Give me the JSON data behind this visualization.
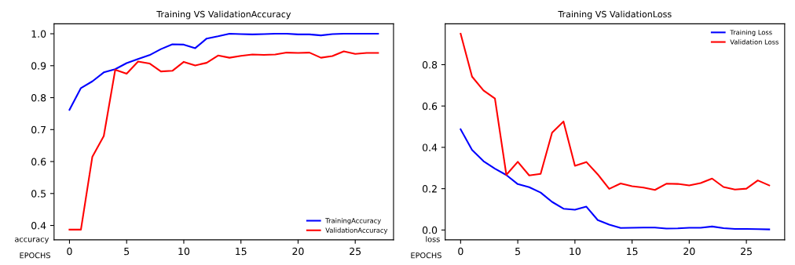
{
  "chart_data": [
    {
      "type": "line",
      "title": "Training VS ValidationAccuracy",
      "xlabel": "EPOCHS",
      "ylabel": "accuracy",
      "x": [
        0,
        1,
        2,
        3,
        4,
        5,
        6,
        7,
        8,
        9,
        10,
        11,
        12,
        13,
        14,
        15,
        16,
        17,
        18,
        19,
        20,
        21,
        22,
        23,
        24,
        25,
        26,
        27
      ],
      "series": [
        {
          "name": "TrainingAccuracy",
          "color": "#0000ff",
          "values": [
            0.762,
            0.83,
            0.851,
            0.879,
            0.889,
            0.908,
            0.921,
            0.933,
            0.952,
            0.967,
            0.966,
            0.955,
            0.985,
            0.992,
            1.0,
            0.999,
            0.998,
            0.999,
            1.0,
            1.0,
            0.998,
            0.998,
            0.995,
            0.999,
            1.0,
            1.0,
            1.0,
            1.0
          ]
        },
        {
          "name": "ValidationAccuracy",
          "color": "#ff0000",
          "values": [
            0.387,
            0.387,
            0.615,
            0.68,
            0.887,
            0.875,
            0.913,
            0.907,
            0.882,
            0.884,
            0.912,
            0.901,
            0.909,
            0.932,
            0.925,
            0.931,
            0.935,
            0.934,
            0.935,
            0.941,
            0.94,
            0.941,
            0.925,
            0.93,
            0.945,
            0.937,
            0.94,
            0.94
          ]
        }
      ],
      "xlim": [
        -1.35,
        28.35
      ],
      "xticks": [
        0,
        5,
        10,
        15,
        20,
        25
      ],
      "ylim": [
        0.355,
        1.031
      ],
      "yticks": [
        0.4,
        0.5,
        0.6,
        0.7,
        0.8,
        0.9,
        {
          "value": 1,
          "label": "1.0"
        }
      ],
      "legend": "bottom right",
      "grid": false
    },
    {
      "type": "line",
      "title": "Training VS ValidationLoss",
      "xlabel": "EPOCHS",
      "ylabel": "loss",
      "x": [
        0,
        1,
        2,
        3,
        4,
        5,
        6,
        7,
        8,
        9,
        10,
        11,
        12,
        13,
        14,
        15,
        16,
        17,
        18,
        19,
        20,
        21,
        22,
        23,
        24,
        25,
        26,
        27
      ],
      "series": [
        {
          "name": "Training Loss",
          "color": "#0000ff",
          "values": [
            0.487,
            0.387,
            0.333,
            0.297,
            0.266,
            0.222,
            0.207,
            0.181,
            0.136,
            0.103,
            0.098,
            0.113,
            0.048,
            0.026,
            0.01,
            0.011,
            0.012,
            0.012,
            0.007,
            0.008,
            0.011,
            0.011,
            0.017,
            0.009,
            0.005,
            0.005,
            0.004,
            0.003
          ]
        },
        {
          "name": "Validation Loss",
          "color": "#ff0000",
          "values": [
            0.95,
            0.742,
            0.675,
            0.636,
            0.267,
            0.33,
            0.264,
            0.272,
            0.471,
            0.525,
            0.311,
            0.329,
            0.269,
            0.199,
            0.225,
            0.212,
            0.205,
            0.194,
            0.224,
            0.223,
            0.216,
            0.227,
            0.249,
            0.208,
            0.196,
            0.2,
            0.24,
            0.216
          ]
        }
      ],
      "xlim": [
        -1.35,
        28.35
      ],
      "xticks": [
        0,
        5,
        10,
        15,
        20,
        25
      ],
      "ylim": [
        -0.0475,
        0.9975
      ],
      "yticks": [
        {
          "value": 0,
          "label": "0.0"
        },
        0.2,
        0.4,
        0.6,
        0.8
      ],
      "legend": "top right",
      "grid": false
    }
  ]
}
